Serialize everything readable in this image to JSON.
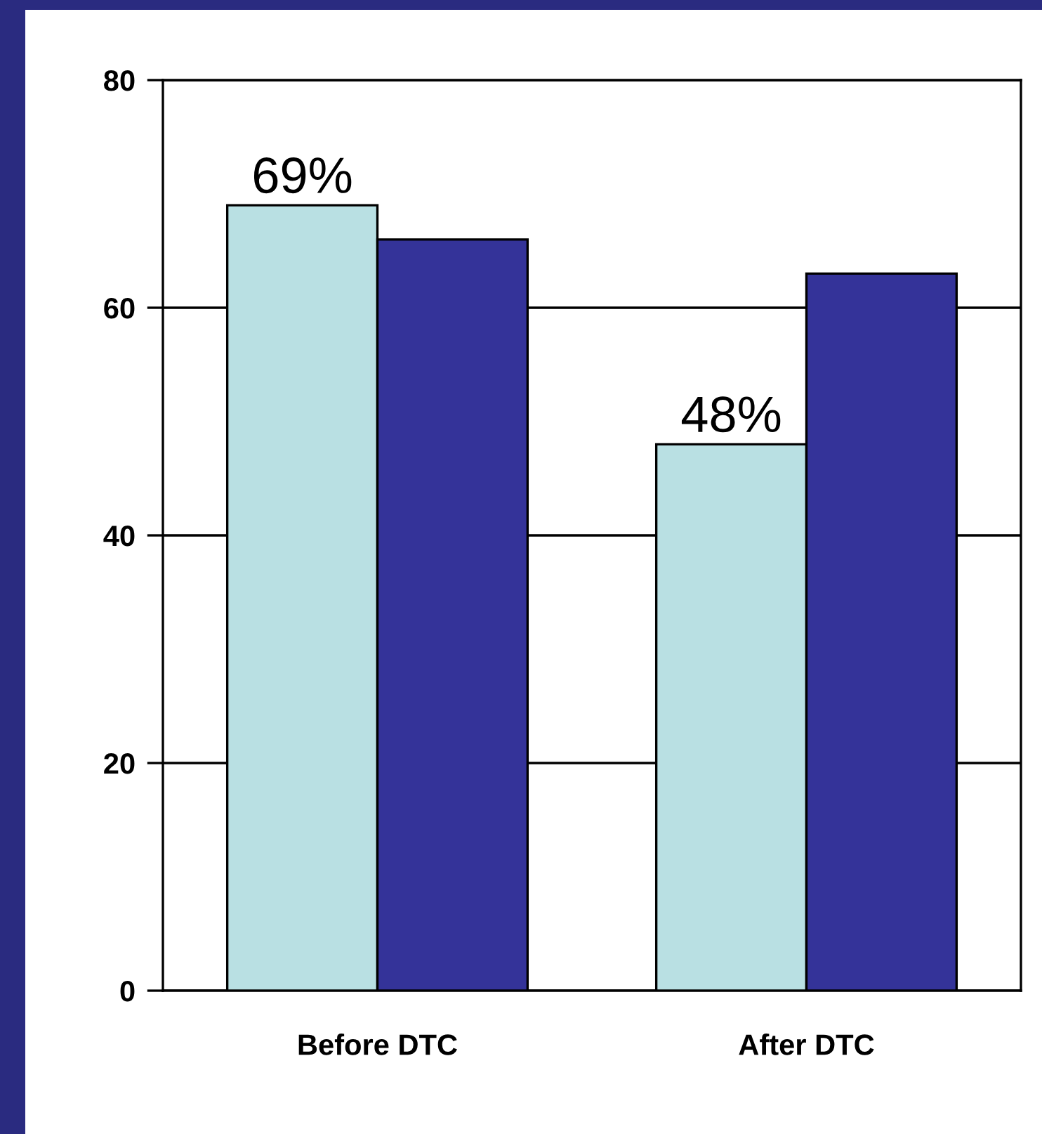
{
  "chart_data": {
    "type": "bar",
    "categories": [
      "Before DTC",
      "After DTC"
    ],
    "series": [
      {
        "color": "#b9e0e3",
        "values": [
          69,
          48
        ],
        "value_labels": [
          "69%",
          "48%"
        ]
      },
      {
        "color": "#343399",
        "values": [
          66,
          63
        ]
      }
    ],
    "ylim": [
      0,
      80
    ],
    "yticks": [
      0,
      20,
      40,
      60,
      80
    ],
    "grid": "y",
    "legend": false
  }
}
